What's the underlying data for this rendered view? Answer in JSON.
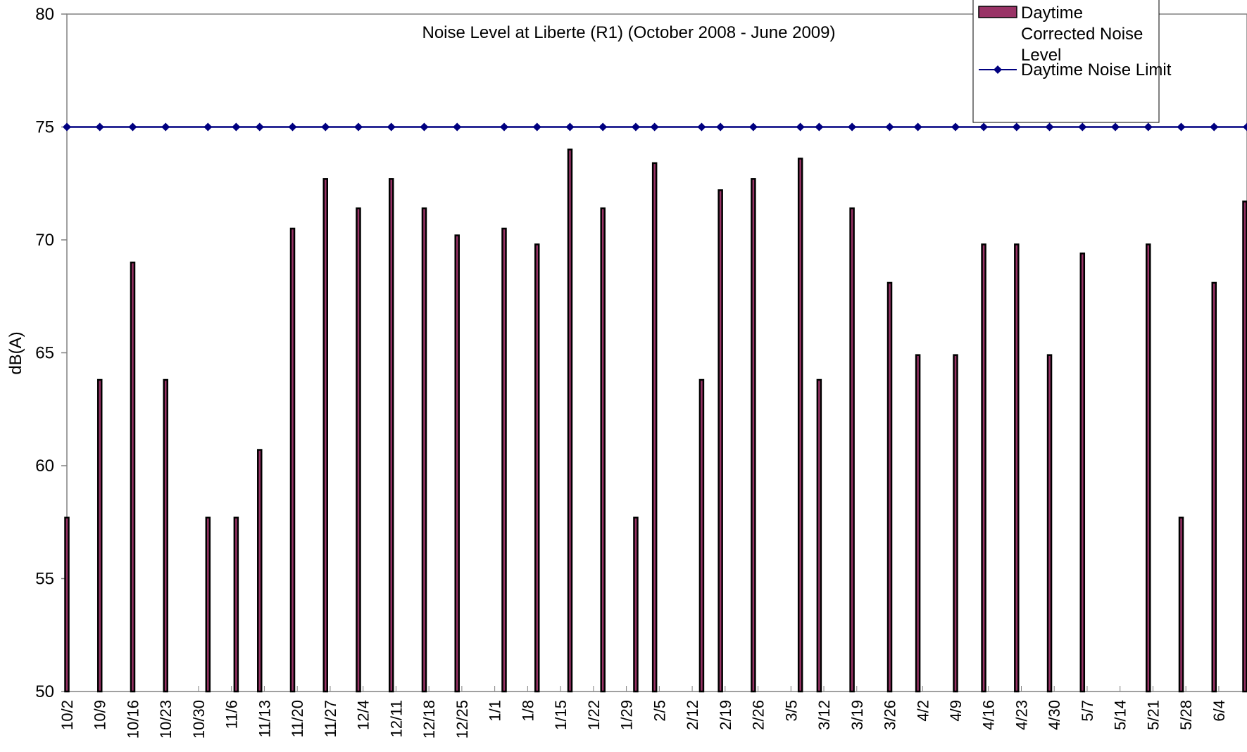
{
  "chart_data": {
    "type": "bar",
    "title": "Noise Level at Liberte (R1) (October 2008 - June 2009)",
    "xlabel": "",
    "ylabel": "dB(A)",
    "ylim": [
      50,
      80
    ],
    "yticks": [
      50,
      55,
      60,
      65,
      70,
      75,
      80
    ],
    "x_tick_labels": [
      "10/2",
      "10/9",
      "10/16",
      "10/23",
      "10/30",
      "11/6",
      "11/13",
      "11/20",
      "11/27",
      "12/4",
      "12/11",
      "12/18",
      "12/25",
      "1/1",
      "1/8",
      "1/15",
      "1/22",
      "1/29",
      "2/5",
      "2/12",
      "2/19",
      "2/26",
      "3/5",
      "3/12",
      "3/19",
      "3/26",
      "4/2",
      "4/9",
      "4/16",
      "4/23",
      "4/30",
      "5/7",
      "5/14",
      "5/21",
      "5/28",
      "6/4"
    ],
    "date_domain": [
      "10/2",
      "6/10"
    ],
    "legend_position": "top-right",
    "grid": false,
    "series": [
      {
        "name": "Daytime Corrected Noise Level",
        "type": "bar",
        "color": "#993366",
        "points": [
          {
            "x": "10/2",
            "y": 57.7
          },
          {
            "x": "10/9",
            "y": 63.8
          },
          {
            "x": "10/16",
            "y": 69.0
          },
          {
            "x": "10/23",
            "y": 63.8
          },
          {
            "x": "11/1",
            "y": 57.7
          },
          {
            "x": "11/7",
            "y": 57.7
          },
          {
            "x": "11/12",
            "y": 60.7
          },
          {
            "x": "11/19",
            "y": 70.5
          },
          {
            "x": "11/26",
            "y": 72.7
          },
          {
            "x": "12/3",
            "y": 71.4
          },
          {
            "x": "12/10",
            "y": 72.7
          },
          {
            "x": "12/17",
            "y": 71.4
          },
          {
            "x": "12/24",
            "y": 70.2
          },
          {
            "x": "1/3",
            "y": 70.5
          },
          {
            "x": "1/10",
            "y": 69.8
          },
          {
            "x": "1/17",
            "y": 74.0
          },
          {
            "x": "1/24",
            "y": 71.4
          },
          {
            "x": "1/31",
            "y": 57.7
          },
          {
            "x": "2/4",
            "y": 73.4
          },
          {
            "x": "2/14",
            "y": 63.8
          },
          {
            "x": "2/18",
            "y": 72.2
          },
          {
            "x": "2/25",
            "y": 72.7
          },
          {
            "x": "3/7",
            "y": 73.6
          },
          {
            "x": "3/11",
            "y": 63.8
          },
          {
            "x": "3/18",
            "y": 71.4
          },
          {
            "x": "3/26",
            "y": 68.1
          },
          {
            "x": "4/1",
            "y": 64.9
          },
          {
            "x": "4/9",
            "y": 64.9
          },
          {
            "x": "4/15",
            "y": 69.8
          },
          {
            "x": "4/22",
            "y": 69.8
          },
          {
            "x": "4/29",
            "y": 64.9
          },
          {
            "x": "5/6",
            "y": 69.4
          },
          {
            "x": "5/20",
            "y": 69.8
          },
          {
            "x": "5/27",
            "y": 57.7
          },
          {
            "x": "6/3",
            "y": 68.1
          },
          {
            "x": "6/10",
            "y": 71.7
          }
        ]
      },
      {
        "name": "Daytime Noise Limit",
        "type": "line",
        "color": "#000080",
        "marker": "diamond",
        "points": [
          {
            "x": "10/2",
            "y": 75
          },
          {
            "x": "10/9",
            "y": 75
          },
          {
            "x": "10/16",
            "y": 75
          },
          {
            "x": "10/23",
            "y": 75
          },
          {
            "x": "11/1",
            "y": 75
          },
          {
            "x": "11/7",
            "y": 75
          },
          {
            "x": "11/12",
            "y": 75
          },
          {
            "x": "11/19",
            "y": 75
          },
          {
            "x": "11/26",
            "y": 75
          },
          {
            "x": "12/3",
            "y": 75
          },
          {
            "x": "12/10",
            "y": 75
          },
          {
            "x": "12/17",
            "y": 75
          },
          {
            "x": "12/24",
            "y": 75
          },
          {
            "x": "1/3",
            "y": 75
          },
          {
            "x": "1/10",
            "y": 75
          },
          {
            "x": "1/17",
            "y": 75
          },
          {
            "x": "1/24",
            "y": 75
          },
          {
            "x": "1/31",
            "y": 75
          },
          {
            "x": "2/4",
            "y": 75
          },
          {
            "x": "2/14",
            "y": 75
          },
          {
            "x": "2/18",
            "y": 75
          },
          {
            "x": "2/25",
            "y": 75
          },
          {
            "x": "3/7",
            "y": 75
          },
          {
            "x": "3/11",
            "y": 75
          },
          {
            "x": "3/18",
            "y": 75
          },
          {
            "x": "3/26",
            "y": 75
          },
          {
            "x": "4/1",
            "y": 75
          },
          {
            "x": "4/9",
            "y": 75
          },
          {
            "x": "4/15",
            "y": 75
          },
          {
            "x": "4/22",
            "y": 75
          },
          {
            "x": "4/29",
            "y": 75
          },
          {
            "x": "5/6",
            "y": 75
          },
          {
            "x": "5/13",
            "y": 75
          },
          {
            "x": "5/20",
            "y": 75
          },
          {
            "x": "5/27",
            "y": 75
          },
          {
            "x": "6/3",
            "y": 75
          },
          {
            "x": "6/10",
            "y": 75
          }
        ]
      }
    ]
  }
}
